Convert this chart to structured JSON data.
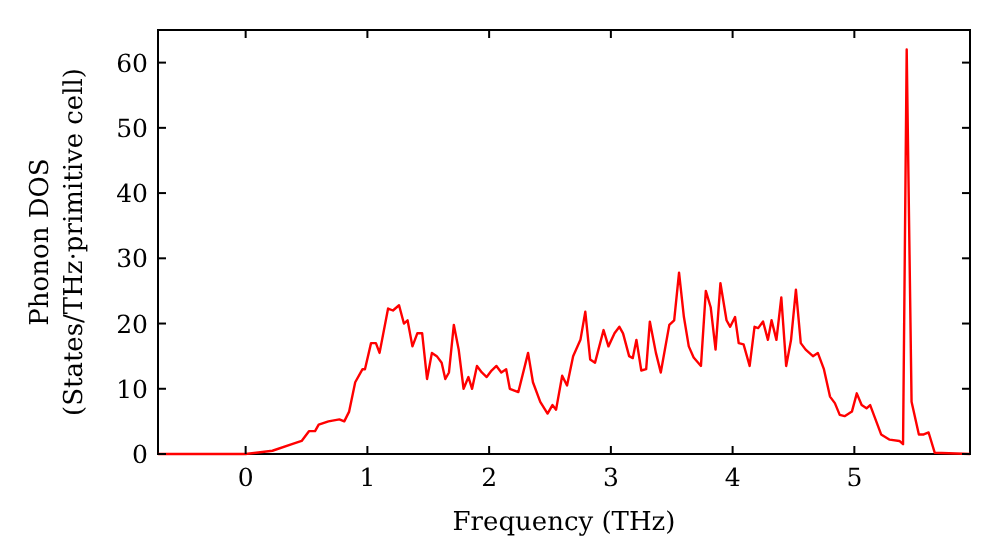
{
  "chart_data": {
    "type": "line",
    "xlabel": "Frequency (THz)",
    "ylabel": "Phonon DOS\n(States/THz·primitive cell)",
    "xlim": [
      -0.72,
      5.95
    ],
    "ylim": [
      0,
      65
    ],
    "xticks": [
      0,
      1,
      2,
      3,
      4,
      5
    ],
    "yticks": [
      0,
      10,
      20,
      30,
      40,
      50,
      60
    ],
    "grid": false,
    "marker": "none",
    "line_style": "solid",
    "series": [
      {
        "color": "#ff0000",
        "x": [
          -0.72,
          0,
          0.22,
          0.38,
          0.46,
          0.52,
          0.57,
          0.6,
          0.68,
          0.77,
          0.81,
          0.85,
          0.9,
          0.96,
          0.98,
          1.03,
          1.07,
          1.1,
          1.17,
          1.21,
          1.26,
          1.3,
          1.33,
          1.37,
          1.41,
          1.45,
          1.49,
          1.53,
          1.57,
          1.61,
          1.64,
          1.67,
          1.71,
          1.75,
          1.79,
          1.83,
          1.86,
          1.9,
          1.94,
          1.98,
          2.02,
          2.06,
          2.1,
          2.14,
          2.17,
          2.24,
          2.32,
          2.36,
          2.42,
          2.48,
          2.52,
          2.55,
          2.6,
          2.64,
          2.69,
          2.75,
          2.79,
          2.83,
          2.87,
          2.94,
          2.98,
          3.03,
          3.07,
          3.1,
          3.15,
          3.18,
          3.21,
          3.25,
          3.29,
          3.32,
          3.37,
          3.41,
          3.48,
          3.52,
          3.56,
          3.6,
          3.64,
          3.68,
          3.74,
          3.78,
          3.82,
          3.86,
          3.9,
          3.95,
          3.98,
          4.02,
          4.05,
          4.09,
          4.14,
          4.18,
          4.21,
          4.25,
          4.29,
          4.32,
          4.36,
          4.4,
          4.44,
          4.48,
          4.52,
          4.56,
          4.6,
          4.66,
          4.7,
          4.75,
          4.8,
          4.84,
          4.88,
          4.92,
          4.98,
          5.02,
          5.06,
          5.1,
          5.13,
          5.18,
          5.22,
          5.29,
          5.37,
          5.4,
          5.43,
          5.47,
          5.53,
          5.57,
          5.61,
          5.66,
          5.95
        ],
        "values": [
          0,
          0,
          0.5,
          1.5,
          2,
          3.5,
          3.5,
          4.5,
          5,
          5.3,
          5,
          6.5,
          11,
          13,
          13,
          17,
          17,
          15.5,
          22.3,
          22,
          22.8,
          20,
          20.5,
          16.5,
          18.5,
          18.5,
          11.5,
          15.5,
          15,
          14,
          11.5,
          12.5,
          19.8,
          16,
          10,
          11.8,
          10,
          13.5,
          12.5,
          11.8,
          12.8,
          13.5,
          12.5,
          13,
          10,
          9.5,
          15.5,
          11,
          8,
          6.2,
          7.5,
          6.8,
          12,
          10.5,
          15,
          17.5,
          21.8,
          14.5,
          14,
          19,
          16.5,
          18.5,
          19.5,
          18.5,
          15,
          14.7,
          17.5,
          12.8,
          13,
          20.3,
          15.5,
          12.5,
          19.8,
          20.5,
          27.8,
          21,
          16.5,
          14.8,
          13.5,
          25,
          22.5,
          16,
          26.2,
          20.5,
          19.5,
          21,
          17,
          16.8,
          13.5,
          19.5,
          19.3,
          20.3,
          17.5,
          20.5,
          17.5,
          24,
          13.5,
          17.5,
          25.2,
          17,
          16,
          15,
          15.5,
          13,
          8.8,
          7.8,
          6,
          5.8,
          6.5,
          9.3,
          7.5,
          7,
          7.5,
          5,
          3,
          2.2,
          2,
          1.5,
          62,
          8,
          3,
          3,
          3.3,
          0.2,
          0
        ]
      }
    ]
  }
}
